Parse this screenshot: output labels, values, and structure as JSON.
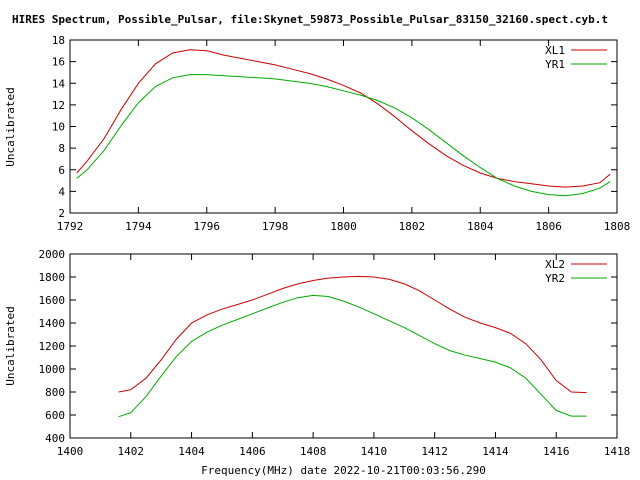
{
  "window": {
    "title": "HIRES Spectrum, Possible_Pulsar, file:Skynet_59873_Possible_Pulsar_83150_32160.spect.cyb.t"
  },
  "colors": {
    "red_series": "#cc0000",
    "green_series": "#00aa00",
    "frame": "#000000",
    "background": "#ffffff"
  },
  "chart_data": [
    {
      "type": "line",
      "title": "HIRES Spectrum, Possible_Pulsar, file:Skynet_59873_Possible_Pulsar_83150_32160.spect.cyb.t",
      "xlabel": "",
      "ylabel": "Uncalibrated",
      "xlim": [
        1792,
        1808
      ],
      "ylim": [
        2,
        18
      ],
      "xticks": [
        1792,
        1794,
        1796,
        1798,
        1800,
        1802,
        1804,
        1806,
        1808
      ],
      "yticks": [
        2,
        4,
        6,
        8,
        10,
        12,
        14,
        16,
        18
      ],
      "grid": false,
      "legend_position": "top-right",
      "series": [
        {
          "name": "XL1",
          "color": "#cc0000",
          "x": [
            1792.2,
            1792.5,
            1793.0,
            1793.5,
            1794.0,
            1794.5,
            1795.0,
            1795.5,
            1796.0,
            1796.5,
            1797.0,
            1797.5,
            1798.0,
            1798.5,
            1799.0,
            1799.5,
            1800.0,
            1800.5,
            1801.0,
            1801.5,
            1802.0,
            1802.5,
            1803.0,
            1803.5,
            1804.0,
            1804.5,
            1805.0,
            1805.5,
            1806.0,
            1806.5,
            1807.0,
            1807.5,
            1807.8
          ],
          "y": [
            5.7,
            6.8,
            8.9,
            11.6,
            14.0,
            15.8,
            16.8,
            17.1,
            17.0,
            16.6,
            16.3,
            16.0,
            15.7,
            15.3,
            14.9,
            14.4,
            13.8,
            13.1,
            12.1,
            10.9,
            9.6,
            8.4,
            7.3,
            6.4,
            5.7,
            5.2,
            4.9,
            4.7,
            4.5,
            4.4,
            4.5,
            4.8,
            5.6
          ]
        },
        {
          "name": "YR1",
          "color": "#00aa00",
          "x": [
            1792.2,
            1792.5,
            1793.0,
            1793.5,
            1794.0,
            1794.5,
            1795.0,
            1795.5,
            1796.0,
            1796.5,
            1797.0,
            1797.5,
            1798.0,
            1798.5,
            1799.0,
            1799.5,
            1800.0,
            1800.5,
            1801.0,
            1801.5,
            1802.0,
            1802.5,
            1803.0,
            1803.5,
            1804.0,
            1804.5,
            1805.0,
            1805.5,
            1806.0,
            1806.5,
            1807.0,
            1807.5,
            1807.8
          ],
          "y": [
            5.2,
            6.0,
            7.8,
            10.1,
            12.2,
            13.7,
            14.5,
            14.8,
            14.8,
            14.7,
            14.6,
            14.5,
            14.4,
            14.2,
            14.0,
            13.7,
            13.3,
            12.9,
            12.4,
            11.7,
            10.8,
            9.7,
            8.5,
            7.3,
            6.2,
            5.2,
            4.5,
            4.0,
            3.7,
            3.6,
            3.8,
            4.3,
            4.9
          ]
        }
      ]
    },
    {
      "type": "line",
      "title": "",
      "xlabel": "Frequency(MHz) date 2022-10-21T00:03:56.290",
      "ylabel": "Uncalibrated",
      "xlim": [
        1400,
        1418
      ],
      "ylim": [
        400,
        2000
      ],
      "xticks": [
        1400,
        1402,
        1404,
        1406,
        1408,
        1410,
        1412,
        1414,
        1416,
        1418
      ],
      "yticks": [
        400,
        600,
        800,
        1000,
        1200,
        1400,
        1600,
        1800,
        2000
      ],
      "grid": false,
      "legend_position": "top-right",
      "series": [
        {
          "name": "XL2",
          "color": "#cc0000",
          "x": [
            1401.6,
            1402.0,
            1402.5,
            1403.0,
            1403.5,
            1404.0,
            1404.5,
            1405.0,
            1405.5,
            1406.0,
            1406.5,
            1407.0,
            1407.5,
            1408.0,
            1408.5,
            1409.0,
            1409.5,
            1410.0,
            1410.5,
            1411.0,
            1411.5,
            1412.0,
            1412.5,
            1413.0,
            1413.5,
            1414.0,
            1414.5,
            1415.0,
            1415.5,
            1416.0,
            1416.5,
            1417.0
          ],
          "y": [
            800,
            820,
            920,
            1080,
            1260,
            1400,
            1470,
            1520,
            1560,
            1600,
            1650,
            1700,
            1740,
            1770,
            1790,
            1800,
            1805,
            1800,
            1780,
            1740,
            1680,
            1600,
            1520,
            1450,
            1400,
            1360,
            1310,
            1220,
            1080,
            900,
            800,
            795
          ]
        },
        {
          "name": "YR2",
          "color": "#00aa00",
          "x": [
            1401.6,
            1402.0,
            1402.5,
            1403.0,
            1403.5,
            1404.0,
            1404.5,
            1405.0,
            1405.5,
            1406.0,
            1406.5,
            1407.0,
            1407.5,
            1408.0,
            1408.5,
            1409.0,
            1409.5,
            1410.0,
            1410.5,
            1411.0,
            1411.5,
            1412.0,
            1412.5,
            1413.0,
            1413.5,
            1414.0,
            1414.5,
            1415.0,
            1415.5,
            1416.0,
            1416.5,
            1417.0
          ],
          "y": [
            585,
            620,
            760,
            940,
            1110,
            1240,
            1320,
            1380,
            1430,
            1480,
            1530,
            1580,
            1620,
            1640,
            1630,
            1590,
            1540,
            1480,
            1420,
            1360,
            1290,
            1220,
            1160,
            1120,
            1090,
            1060,
            1010,
            920,
            780,
            640,
            590,
            590
          ]
        }
      ]
    }
  ]
}
